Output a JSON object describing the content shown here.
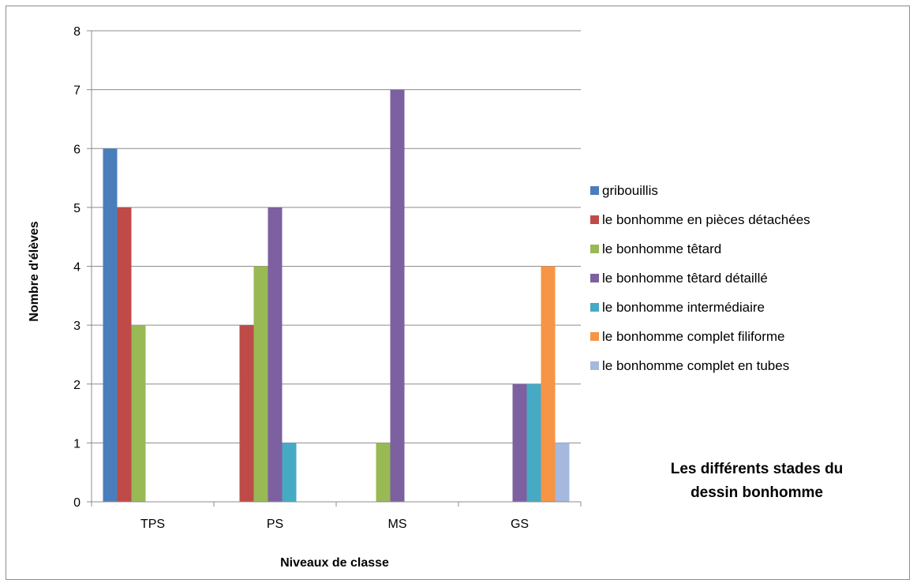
{
  "chart_data": {
    "type": "bar",
    "title": "Les différents stades du dessin bonhomme",
    "title_lines": [
      "Les différents stades du",
      "dessin bonhomme"
    ],
    "xlabel": "Niveaux de classe",
    "ylabel": "Nombre d'élèves",
    "categories": [
      "TPS",
      "PS",
      "MS",
      "GS"
    ],
    "ylim": [
      0,
      8
    ],
    "yticks": [
      0,
      1,
      2,
      3,
      4,
      5,
      6,
      7,
      8
    ],
    "grid": true,
    "legend_position": "right",
    "series": [
      {
        "name": "gribouillis",
        "color": "#4a7ebb",
        "values": [
          6,
          0,
          0,
          0
        ]
      },
      {
        "name": "le bonhomme en pièces détachées",
        "color": "#be4b48",
        "values": [
          5,
          3,
          0,
          0
        ]
      },
      {
        "name": "le bonhomme têtard",
        "color": "#98b954",
        "values": [
          3,
          4,
          1,
          0
        ]
      },
      {
        "name": "le bonhomme têtard détaillé",
        "color": "#7d60a0",
        "values": [
          0,
          5,
          7,
          2
        ]
      },
      {
        "name": "le bonhomme intermédiaire",
        "color": "#46aac5",
        "values": [
          0,
          1,
          0,
          2
        ]
      },
      {
        "name": "le bonhomme complet filiforme",
        "color": "#f69545",
        "values": [
          0,
          0,
          0,
          4
        ]
      },
      {
        "name": "le bonhomme complet en tubes",
        "color": "#a5b9de",
        "values": [
          0,
          0,
          0,
          1
        ]
      }
    ]
  }
}
